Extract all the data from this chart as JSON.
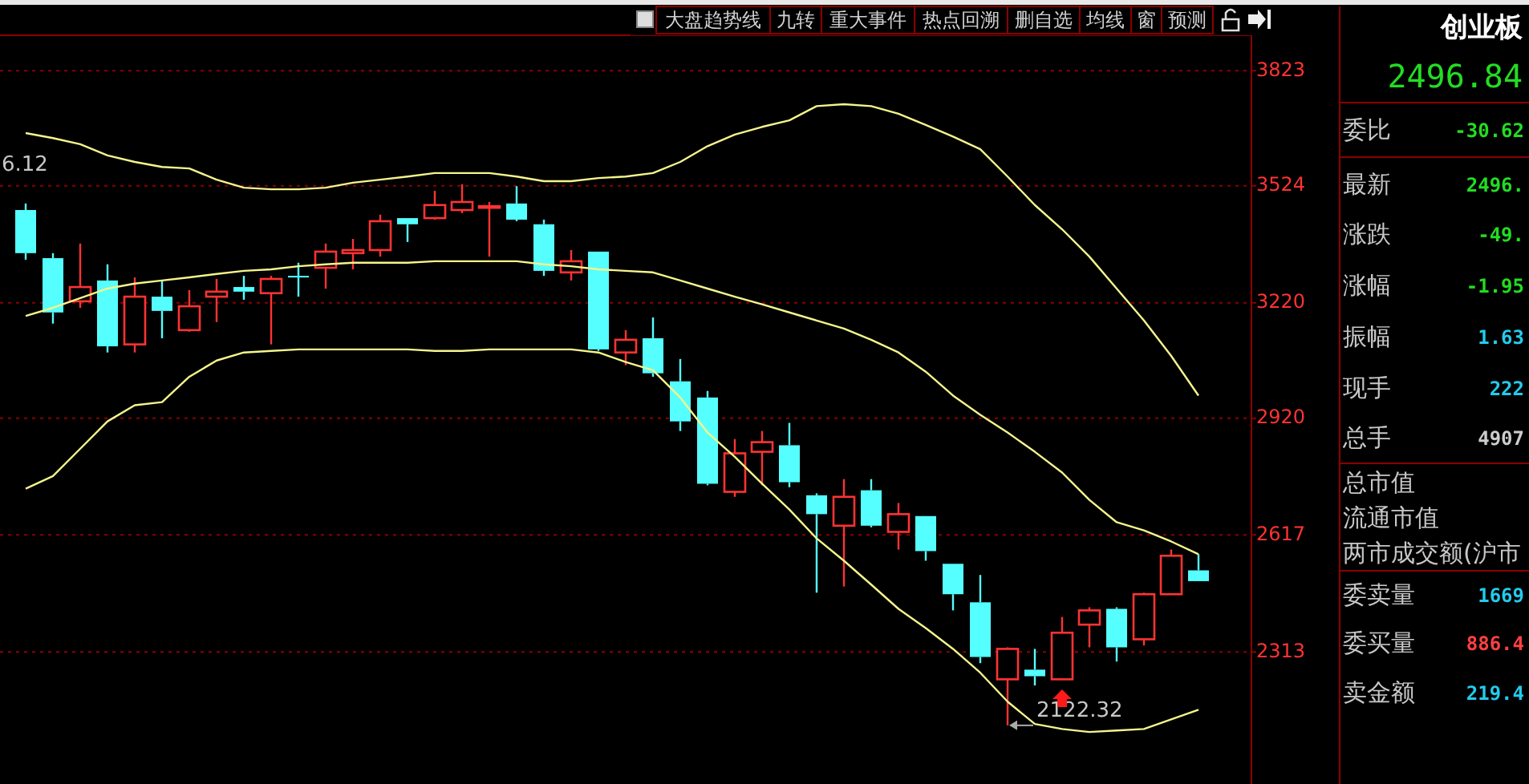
{
  "chart_data": [
    {
      "type": "candlestick",
      "categories": [
        null,
        null,
        null,
        null,
        null,
        null,
        null,
        null,
        null,
        null,
        null,
        null,
        null,
        null,
        null,
        null,
        null,
        null,
        null,
        null,
        null,
        null,
        null,
        null,
        null,
        null,
        null,
        null,
        null,
        null,
        null,
        null,
        null,
        null,
        null,
        null,
        null,
        null,
        null,
        null,
        null,
        null,
        null,
        null
      ],
      "ohlc": [
        [
          3461,
          3478,
          3332,
          3349
        ],
        [
          3336,
          3349,
          3166,
          3195
        ],
        [
          3224,
          3374,
          3207,
          3261
        ],
        [
          3278,
          3320,
          3091,
          3107
        ],
        [
          3112,
          3286,
          3091,
          3236
        ],
        [
          3236,
          3278,
          3128,
          3199
        ],
        [
          3149,
          3253,
          3145,
          3211
        ],
        [
          3236,
          3282,
          3170,
          3249
        ],
        [
          3261,
          3290,
          3228,
          3249
        ],
        [
          3245,
          3290,
          3112,
          3282
        ],
        [
          3290,
          3324,
          3236,
          3286
        ],
        [
          3311,
          3374,
          3257,
          3353
        ],
        [
          3349,
          3386,
          3307,
          3357
        ],
        [
          3357,
          3449,
          3340,
          3432
        ],
        [
          3440,
          3440,
          3378,
          3424
        ],
        [
          3440,
          3511,
          3436,
          3474
        ],
        [
          3461,
          3528,
          3453,
          3482
        ],
        [
          3469,
          3482,
          3340,
          3471
        ],
        [
          3478,
          3523,
          3432,
          3436
        ],
        [
          3424,
          3436,
          3290,
          3303
        ],
        [
          3299,
          3357,
          3278,
          3328
        ],
        [
          3353,
          3353,
          3095,
          3099
        ],
        [
          3091,
          3149,
          3058,
          3124
        ],
        [
          3128,
          3182,
          3028,
          3037
        ],
        [
          3016,
          3074,
          2887,
          2912
        ],
        [
          2974,
          2991,
          2746,
          2750
        ],
        [
          2729,
          2866,
          2716,
          2829
        ],
        [
          2833,
          2887,
          2746,
          2858
        ],
        [
          2850,
          2908,
          2741,
          2754
        ],
        [
          2720,
          2725,
          2467,
          2671
        ],
        [
          2641,
          2762,
          2483,
          2716
        ],
        [
          2733,
          2762,
          2637,
          2641
        ],
        [
          2625,
          2700,
          2579,
          2671
        ],
        [
          2666,
          2666,
          2550,
          2575
        ],
        [
          2542,
          2542,
          2421,
          2463
        ],
        [
          2442,
          2513,
          2284,
          2300
        ],
        [
          2242,
          2325,
          2122.32,
          2321
        ],
        [
          2267,
          2321,
          2226,
          2250
        ],
        [
          2242,
          2404,
          2240,
          2363
        ],
        [
          2384,
          2429,
          2325,
          2421
        ],
        [
          2425,
          2429,
          2288,
          2325
        ],
        [
          2346,
          2467,
          2330,
          2463
        ],
        [
          2463,
          2579,
          2461,
          2563
        ],
        [
          2525,
          2567,
          2497,
          2497
        ]
      ],
      "colors": [
        "#55ffff",
        "#55ffff",
        "#ff3333",
        "#55ffff",
        "#ff3333",
        "#55ffff",
        "#ff3333",
        "#ff3333",
        "#55ffff",
        "#ff3333",
        "#55ffff",
        "#ff3333",
        "#ff3333",
        "#ff3333",
        "#55ffff",
        "#ff3333",
        "#ff3333",
        "#ff3333",
        "#55ffff",
        "#55ffff",
        "#ff3333",
        "#55ffff",
        "#ff3333",
        "#55ffff",
        "#55ffff",
        "#55ffff",
        "#ff3333",
        "#ff3333",
        "#55ffff",
        "#55ffff",
        "#ff3333",
        "#55ffff",
        "#ff3333",
        "#55ffff",
        "#55ffff",
        "#55ffff",
        "#ff3333",
        "#55ffff",
        "#ff3333",
        "#ff3333",
        "#55ffff",
        "#ff3333",
        "#ff3333",
        "#55ffff"
      ],
      "series": [
        {
          "type": "line",
          "color": "#f5f58c",
          "values": [
            3661,
            3648,
            3632,
            3603,
            3586,
            3573,
            3569,
            3540,
            3519,
            3515,
            3515,
            3519,
            3532,
            3540,
            3548,
            3557,
            3557,
            3557,
            3548,
            3536,
            3536,
            3544,
            3548,
            3557,
            3586,
            3627,
            3657,
            3677,
            3694,
            3731,
            3736,
            3731,
            3711,
            3682,
            3652,
            3619,
            3548,
            3474,
            3411,
            3340,
            3257,
            3174,
            3082,
            2979
          ]
        },
        {
          "type": "line",
          "color": "#f5f58c",
          "values": [
            3186,
            3207,
            3232,
            3257,
            3270,
            3278,
            3286,
            3295,
            3303,
            3307,
            3315,
            3320,
            3324,
            3324,
            3324,
            3328,
            3328,
            3328,
            3328,
            3320,
            3315,
            3307,
            3303,
            3299,
            3278,
            3257,
            3236,
            3216,
            3195,
            3174,
            3153,
            3124,
            3091,
            3041,
            2979,
            2929,
            2883,
            2833,
            2779,
            2708,
            2650,
            2629,
            2600,
            2567
          ]
        },
        {
          "type": "line",
          "color": "#f5f58c",
          "values": [
            2737,
            2770,
            2841,
            2912,
            2954,
            2962,
            3028,
            3070,
            3091,
            3095,
            3099,
            3099,
            3099,
            3099,
            3099,
            3095,
            3095,
            3099,
            3099,
            3099,
            3099,
            3091,
            3066,
            3045,
            2974,
            2883,
            2820,
            2750,
            2683,
            2608,
            2550,
            2488,
            2425,
            2375,
            2321,
            2259,
            2184,
            2126,
            2113,
            2105,
            2109,
            2113,
            2138,
            2163
          ]
        }
      ],
      "ylim": [
        1970,
        3915
      ],
      "yticks": [
        2313,
        2617,
        2920,
        3220,
        3524,
        3823
      ],
      "grid": "y",
      "line_style": "solid",
      "marker": "none",
      "annotations": [
        "6.12",
        {
          "text": "2122.32",
          "y": 2122.32
        }
      ]
    },
    {
      "type": "other",
      "title": "创业板",
      "subtitle": "2496.84",
      "categories": [
        "委比",
        "最新",
        "涨跌",
        "涨幅",
        "振幅",
        "现手",
        "总手",
        "总市值",
        "流通市值",
        "两市成交额(沪市",
        "委卖量",
        "委买量",
        "卖金额"
      ],
      "value_labels": [
        "-30.62",
        "2496.",
        "-49.",
        "-1.95",
        "1.63",
        "222",
        "4907",
        null,
        null,
        null,
        "1669",
        "886.4",
        "219.4"
      ],
      "colors": [
        "#22dd22",
        "#22dd22",
        "#22dd22",
        "#22dd22",
        "#22ccee",
        "#22ccee",
        "#cccccc",
        null,
        null,
        null,
        "#22ccee",
        "#ff4040",
        "#22ccee"
      ]
    },
    {
      "type": "other",
      "annotations": [
        "大盘趋势线",
        "九转",
        "重大事件",
        "热点回溯",
        "删自选",
        "均线",
        "窗",
        "预测"
      ]
    }
  ]
}
